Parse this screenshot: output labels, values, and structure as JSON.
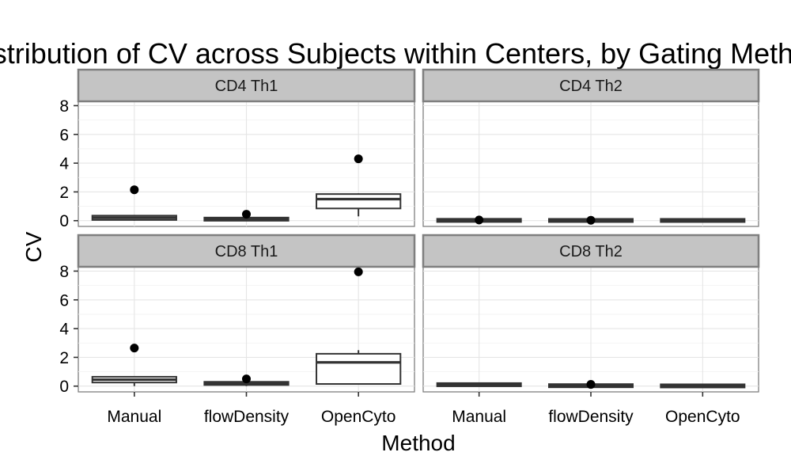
{
  "chart_data": {
    "type": "boxplot",
    "title": "Distribution of CV across Subjects within Centers, by Gating Method",
    "xlabel": "Method",
    "ylabel": "CV",
    "categories": [
      "Manual",
      "flowDensity",
      "OpenCyto"
    ],
    "ylim": [
      -0.4,
      8.3
    ],
    "yticks": [
      0,
      2,
      4,
      6,
      8
    ],
    "grid": true,
    "facets": [
      {
        "label": "CD4 Th1",
        "boxes": [
          {
            "category": "Manual",
            "lower": 0.0,
            "q1": 0.05,
            "median": 0.2,
            "q3": 0.35,
            "upper": 0.4,
            "outliers": [
              2.15
            ]
          },
          {
            "category": "flowDensity",
            "lower": 0.0,
            "q1": 0.03,
            "median": 0.1,
            "q3": 0.18,
            "upper": 0.2,
            "outliers": [
              0.45
            ]
          },
          {
            "category": "OpenCyto",
            "lower": 0.3,
            "q1": 0.85,
            "median": 1.5,
            "q3": 1.85,
            "upper": 1.9,
            "outliers": [
              4.3
            ]
          }
        ]
      },
      {
        "label": "CD4 Th2",
        "boxes": [
          {
            "category": "Manual",
            "lower": 0.0,
            "q1": 0.0,
            "median": 0.02,
            "q3": 0.04,
            "upper": 0.05,
            "outliers": [
              0.05
            ]
          },
          {
            "category": "flowDensity",
            "lower": 0.0,
            "q1": 0.0,
            "median": 0.01,
            "q3": 0.03,
            "upper": 0.04,
            "outliers": [
              0.03
            ]
          },
          {
            "category": "OpenCyto",
            "lower": 0.0,
            "q1": 0.0,
            "median": 0.01,
            "q3": 0.03,
            "upper": 0.04,
            "outliers": []
          }
        ]
      },
      {
        "label": "CD8 Th1",
        "boxes": [
          {
            "category": "Manual",
            "lower": 0.0,
            "q1": 0.25,
            "median": 0.45,
            "q3": 0.65,
            "upper": 0.7,
            "outliers": [
              2.65
            ]
          },
          {
            "category": "flowDensity",
            "lower": 0.0,
            "q1": 0.1,
            "median": 0.2,
            "q3": 0.28,
            "upper": 0.3,
            "outliers": [
              0.5
            ]
          },
          {
            "category": "OpenCyto",
            "lower": 0.1,
            "q1": 0.15,
            "median": 1.65,
            "q3": 2.25,
            "upper": 2.5,
            "outliers": [
              7.95
            ]
          }
        ]
      },
      {
        "label": "CD8 Th2",
        "boxes": [
          {
            "category": "Manual",
            "lower": 0.0,
            "q1": 0.05,
            "median": 0.1,
            "q3": 0.15,
            "upper": 0.18,
            "outliers": []
          },
          {
            "category": "flowDensity",
            "lower": 0.0,
            "q1": 0.0,
            "median": 0.03,
            "q3": 0.06,
            "upper": 0.08,
            "outliers": [
              0.12
            ]
          },
          {
            "category": "OpenCyto",
            "lower": 0.0,
            "q1": 0.0,
            "median": 0.01,
            "q3": 0.03,
            "upper": 0.04,
            "outliers": []
          }
        ]
      }
    ]
  }
}
